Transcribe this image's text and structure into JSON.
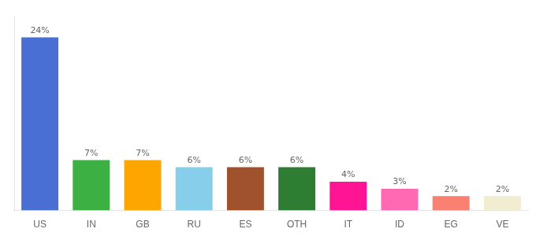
{
  "chart_data": {
    "type": "bar",
    "categories": [
      "US",
      "IN",
      "GB",
      "RU",
      "ES",
      "OTH",
      "IT",
      "ID",
      "EG",
      "VE"
    ],
    "values": [
      24,
      7,
      7,
      6,
      6,
      6,
      4,
      3,
      2,
      2
    ],
    "value_labels": [
      "24%",
      "7%",
      "7%",
      "6%",
      "6%",
      "6%",
      "4%",
      "3%",
      "2%",
      "2%"
    ],
    "colors": [
      "#4A6FD4",
      "#3CB043",
      "#FFA500",
      "#87CEEB",
      "#A0522D",
      "#2E7D32",
      "#FF1493",
      "#FF69B4",
      "#FA8072",
      "#F0EDD0"
    ],
    "ylim": [
      0,
      27
    ],
    "data_labels": true,
    "tick_labels": "x",
    "grid": false
  }
}
